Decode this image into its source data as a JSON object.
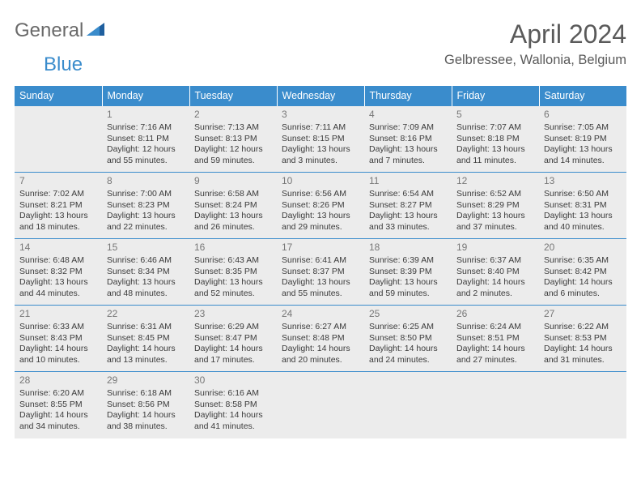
{
  "brand": {
    "general": "General",
    "blue": "Blue"
  },
  "header": {
    "month_title": "April 2024",
    "location": "Gelbressee, Wallonia, Belgium"
  },
  "colors": {
    "header_bg": "#3a8ccc",
    "header_text": "#ffffff",
    "cell_border": "#3a8ccc",
    "shaded_bg": "#ececec",
    "body_text": "#3b3b3b",
    "daynum_text": "#777777",
    "page_bg": "#ffffff"
  },
  "fonts": {
    "title_size_pt": 24,
    "location_size_pt": 12,
    "header_size_pt": 9.5,
    "cell_size_pt": 8
  },
  "day_headers": [
    "Sunday",
    "Monday",
    "Tuesday",
    "Wednesday",
    "Thursday",
    "Friday",
    "Saturday"
  ],
  "weeks": [
    [
      {
        "blank": true
      },
      {
        "n": "1",
        "sunrise": "Sunrise: 7:16 AM",
        "sunset": "Sunset: 8:11 PM",
        "d1": "Daylight: 12 hours",
        "d2": "and 55 minutes."
      },
      {
        "n": "2",
        "sunrise": "Sunrise: 7:13 AM",
        "sunset": "Sunset: 8:13 PM",
        "d1": "Daylight: 12 hours",
        "d2": "and 59 minutes."
      },
      {
        "n": "3",
        "sunrise": "Sunrise: 7:11 AM",
        "sunset": "Sunset: 8:15 PM",
        "d1": "Daylight: 13 hours",
        "d2": "and 3 minutes."
      },
      {
        "n": "4",
        "sunrise": "Sunrise: 7:09 AM",
        "sunset": "Sunset: 8:16 PM",
        "d1": "Daylight: 13 hours",
        "d2": "and 7 minutes."
      },
      {
        "n": "5",
        "sunrise": "Sunrise: 7:07 AM",
        "sunset": "Sunset: 8:18 PM",
        "d1": "Daylight: 13 hours",
        "d2": "and 11 minutes."
      },
      {
        "n": "6",
        "sunrise": "Sunrise: 7:05 AM",
        "sunset": "Sunset: 8:19 PM",
        "d1": "Daylight: 13 hours",
        "d2": "and 14 minutes."
      }
    ],
    [
      {
        "n": "7",
        "sunrise": "Sunrise: 7:02 AM",
        "sunset": "Sunset: 8:21 PM",
        "d1": "Daylight: 13 hours",
        "d2": "and 18 minutes."
      },
      {
        "n": "8",
        "sunrise": "Sunrise: 7:00 AM",
        "sunset": "Sunset: 8:23 PM",
        "d1": "Daylight: 13 hours",
        "d2": "and 22 minutes."
      },
      {
        "n": "9",
        "sunrise": "Sunrise: 6:58 AM",
        "sunset": "Sunset: 8:24 PM",
        "d1": "Daylight: 13 hours",
        "d2": "and 26 minutes."
      },
      {
        "n": "10",
        "sunrise": "Sunrise: 6:56 AM",
        "sunset": "Sunset: 8:26 PM",
        "d1": "Daylight: 13 hours",
        "d2": "and 29 minutes."
      },
      {
        "n": "11",
        "sunrise": "Sunrise: 6:54 AM",
        "sunset": "Sunset: 8:27 PM",
        "d1": "Daylight: 13 hours",
        "d2": "and 33 minutes."
      },
      {
        "n": "12",
        "sunrise": "Sunrise: 6:52 AM",
        "sunset": "Sunset: 8:29 PM",
        "d1": "Daylight: 13 hours",
        "d2": "and 37 minutes."
      },
      {
        "n": "13",
        "sunrise": "Sunrise: 6:50 AM",
        "sunset": "Sunset: 8:31 PM",
        "d1": "Daylight: 13 hours",
        "d2": "and 40 minutes."
      }
    ],
    [
      {
        "n": "14",
        "sunrise": "Sunrise: 6:48 AM",
        "sunset": "Sunset: 8:32 PM",
        "d1": "Daylight: 13 hours",
        "d2": "and 44 minutes."
      },
      {
        "n": "15",
        "sunrise": "Sunrise: 6:46 AM",
        "sunset": "Sunset: 8:34 PM",
        "d1": "Daylight: 13 hours",
        "d2": "and 48 minutes."
      },
      {
        "n": "16",
        "sunrise": "Sunrise: 6:43 AM",
        "sunset": "Sunset: 8:35 PM",
        "d1": "Daylight: 13 hours",
        "d2": "and 52 minutes."
      },
      {
        "n": "17",
        "sunrise": "Sunrise: 6:41 AM",
        "sunset": "Sunset: 8:37 PM",
        "d1": "Daylight: 13 hours",
        "d2": "and 55 minutes."
      },
      {
        "n": "18",
        "sunrise": "Sunrise: 6:39 AM",
        "sunset": "Sunset: 8:39 PM",
        "d1": "Daylight: 13 hours",
        "d2": "and 59 minutes."
      },
      {
        "n": "19",
        "sunrise": "Sunrise: 6:37 AM",
        "sunset": "Sunset: 8:40 PM",
        "d1": "Daylight: 14 hours",
        "d2": "and 2 minutes."
      },
      {
        "n": "20",
        "sunrise": "Sunrise: 6:35 AM",
        "sunset": "Sunset: 8:42 PM",
        "d1": "Daylight: 14 hours",
        "d2": "and 6 minutes."
      }
    ],
    [
      {
        "n": "21",
        "sunrise": "Sunrise: 6:33 AM",
        "sunset": "Sunset: 8:43 PM",
        "d1": "Daylight: 14 hours",
        "d2": "and 10 minutes."
      },
      {
        "n": "22",
        "sunrise": "Sunrise: 6:31 AM",
        "sunset": "Sunset: 8:45 PM",
        "d1": "Daylight: 14 hours",
        "d2": "and 13 minutes."
      },
      {
        "n": "23",
        "sunrise": "Sunrise: 6:29 AM",
        "sunset": "Sunset: 8:47 PM",
        "d1": "Daylight: 14 hours",
        "d2": "and 17 minutes."
      },
      {
        "n": "24",
        "sunrise": "Sunrise: 6:27 AM",
        "sunset": "Sunset: 8:48 PM",
        "d1": "Daylight: 14 hours",
        "d2": "and 20 minutes."
      },
      {
        "n": "25",
        "sunrise": "Sunrise: 6:25 AM",
        "sunset": "Sunset: 8:50 PM",
        "d1": "Daylight: 14 hours",
        "d2": "and 24 minutes."
      },
      {
        "n": "26",
        "sunrise": "Sunrise: 6:24 AM",
        "sunset": "Sunset: 8:51 PM",
        "d1": "Daylight: 14 hours",
        "d2": "and 27 minutes."
      },
      {
        "n": "27",
        "sunrise": "Sunrise: 6:22 AM",
        "sunset": "Sunset: 8:53 PM",
        "d1": "Daylight: 14 hours",
        "d2": "and 31 minutes."
      }
    ],
    [
      {
        "n": "28",
        "sunrise": "Sunrise: 6:20 AM",
        "sunset": "Sunset: 8:55 PM",
        "d1": "Daylight: 14 hours",
        "d2": "and 34 minutes."
      },
      {
        "n": "29",
        "sunrise": "Sunrise: 6:18 AM",
        "sunset": "Sunset: 8:56 PM",
        "d1": "Daylight: 14 hours",
        "d2": "and 38 minutes."
      },
      {
        "n": "30",
        "sunrise": "Sunrise: 6:16 AM",
        "sunset": "Sunset: 8:58 PM",
        "d1": "Daylight: 14 hours",
        "d2": "and 41 minutes."
      },
      {
        "blank": true
      },
      {
        "blank": true
      },
      {
        "blank": true
      },
      {
        "blank": true
      }
    ]
  ]
}
